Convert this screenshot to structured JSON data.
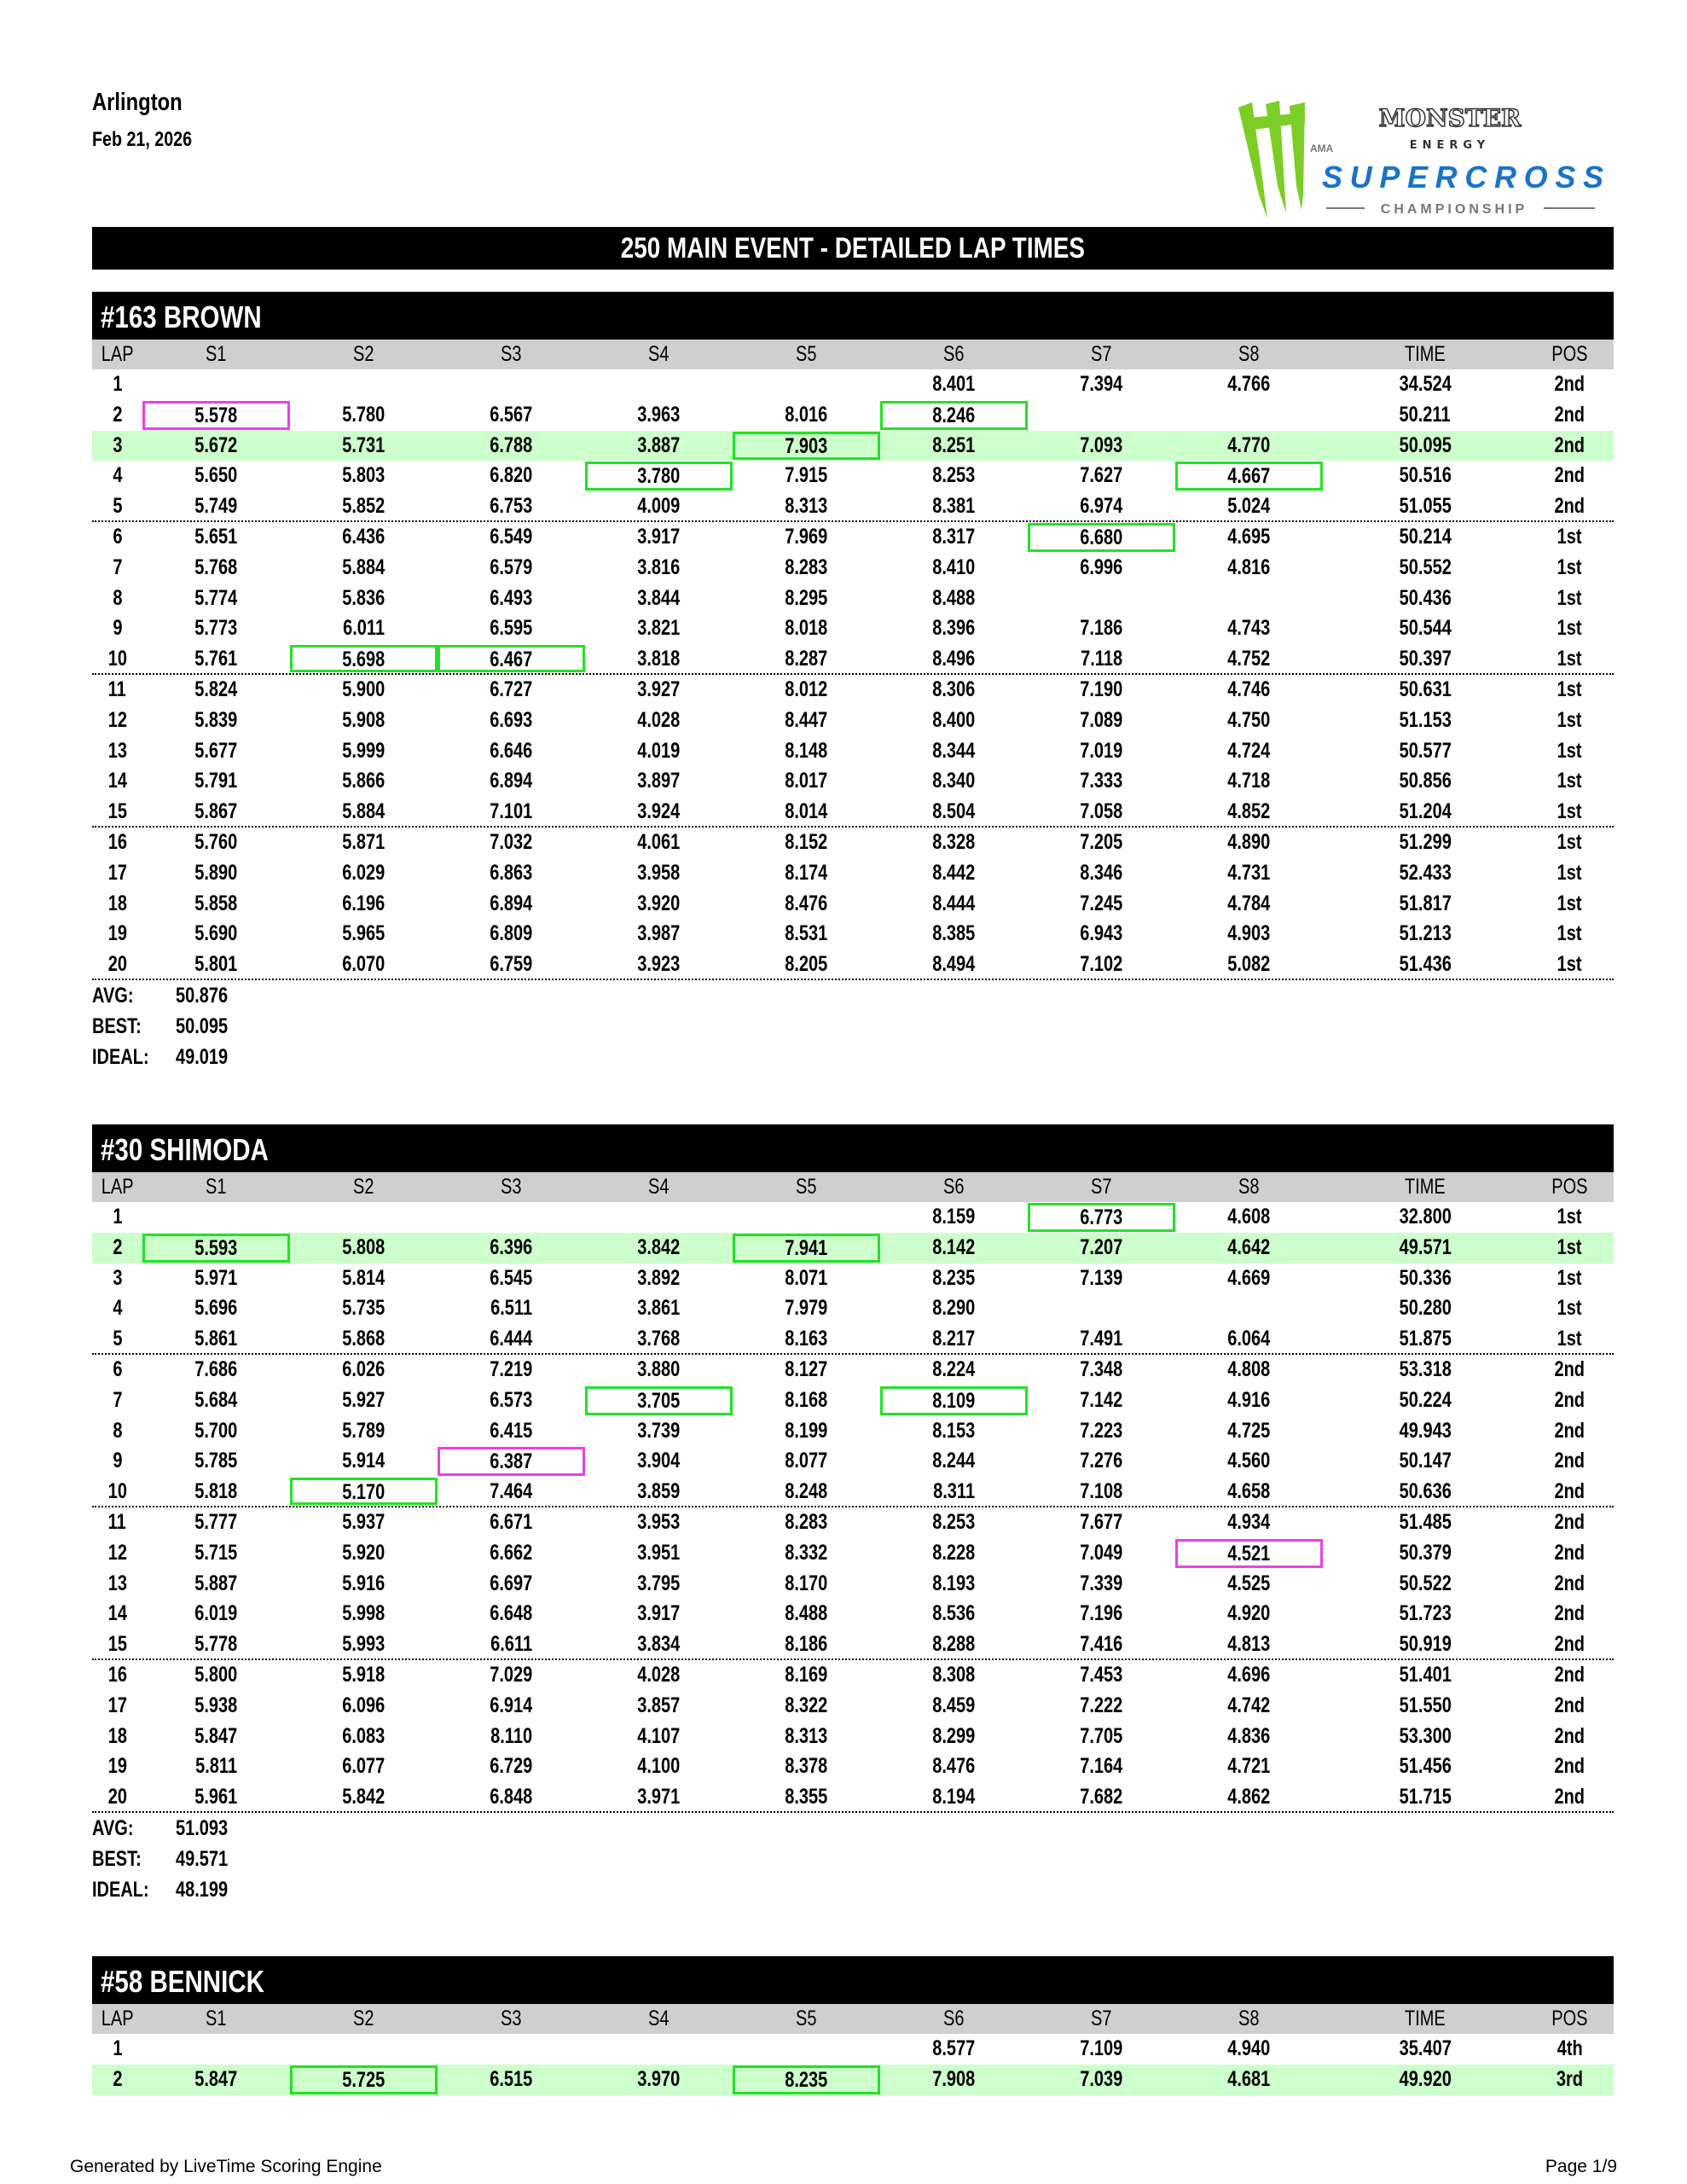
{
  "header": {
    "venue": "Arlington",
    "date": "Feb 21, 2026"
  },
  "logo": {
    "line1": "MONSTER",
    "line2": "ENERGY",
    "ama": "AMA",
    "brand": "SUPERCROSS",
    "sub": "CHAMPIONSHIP",
    "colors": {
      "claw": "#7ccd26",
      "blue": "#1a73c8",
      "grey": "#777777"
    }
  },
  "title": "250 MAIN EVENT - DETAILED LAP TIMES",
  "columns": [
    "LAP",
    "S1",
    "S2",
    "S3",
    "S4",
    "S5",
    "S6",
    "S7",
    "S8",
    "TIME",
    "POS"
  ],
  "colors": {
    "best_lap_row": "#ccffcc",
    "green_box": "#22e322",
    "magenta_box": "#ee3ee8",
    "header_gray": "#cfcfcf"
  },
  "stat_labels": {
    "avg": "AVG:",
    "best": "BEST:",
    "ideal": "IDEAL:"
  },
  "drivers": [
    {
      "name": "#163 BROWN",
      "rows": [
        {
          "c": [
            "1",
            "",
            "",
            "",
            "",
            "",
            "8.401",
            "7.394",
            "4.766",
            "34.524",
            "2nd"
          ]
        },
        {
          "c": [
            "2",
            "5.578",
            "5.780",
            "6.567",
            "3.963",
            "8.016",
            "8.246",
            "",
            "",
            "50.211",
            "2nd"
          ],
          "marks": {
            "1": "magenta",
            "6": "green"
          }
        },
        {
          "c": [
            "3",
            "5.672",
            "5.731",
            "6.788",
            "3.887",
            "7.903",
            "8.251",
            "7.093",
            "4.770",
            "50.095",
            "2nd"
          ],
          "best": true,
          "marks": {
            "5": "green"
          }
        },
        {
          "c": [
            "4",
            "5.650",
            "5.803",
            "6.820",
            "3.780",
            "7.915",
            "8.253",
            "7.627",
            "4.667",
            "50.516",
            "2nd"
          ],
          "marks": {
            "4": "green",
            "8": "green"
          }
        },
        {
          "c": [
            "5",
            "5.749",
            "5.852",
            "6.753",
            "4.009",
            "8.313",
            "8.381",
            "6.974",
            "5.024",
            "51.055",
            "2nd"
          ]
        },
        {
          "c": [
            "6",
            "5.651",
            "6.436",
            "6.549",
            "3.917",
            "7.969",
            "8.317",
            "6.680",
            "4.695",
            "50.214",
            "1st"
          ],
          "marks": {
            "7": "green"
          }
        },
        {
          "c": [
            "7",
            "5.768",
            "5.884",
            "6.579",
            "3.816",
            "8.283",
            "8.410",
            "6.996",
            "4.816",
            "50.552",
            "1st"
          ]
        },
        {
          "c": [
            "8",
            "5.774",
            "5.836",
            "6.493",
            "3.844",
            "8.295",
            "8.488",
            "",
            "",
            "50.436",
            "1st"
          ]
        },
        {
          "c": [
            "9",
            "5.773",
            "6.011",
            "6.595",
            "3.821",
            "8.018",
            "8.396",
            "7.186",
            "4.743",
            "50.544",
            "1st"
          ]
        },
        {
          "c": [
            "10",
            "5.761",
            "5.698",
            "6.467",
            "3.818",
            "8.287",
            "8.496",
            "7.118",
            "4.752",
            "50.397",
            "1st"
          ],
          "marks": {
            "2": "green",
            "3": "green"
          }
        },
        {
          "c": [
            "11",
            "5.824",
            "5.900",
            "6.727",
            "3.927",
            "8.012",
            "8.306",
            "7.190",
            "4.746",
            "50.631",
            "1st"
          ]
        },
        {
          "c": [
            "12",
            "5.839",
            "5.908",
            "6.693",
            "4.028",
            "8.447",
            "8.400",
            "7.089",
            "4.750",
            "51.153",
            "1st"
          ]
        },
        {
          "c": [
            "13",
            "5.677",
            "5.999",
            "6.646",
            "4.019",
            "8.148",
            "8.344",
            "7.019",
            "4.724",
            "50.577",
            "1st"
          ]
        },
        {
          "c": [
            "14",
            "5.791",
            "5.866",
            "6.894",
            "3.897",
            "8.017",
            "8.340",
            "7.333",
            "4.718",
            "50.856",
            "1st"
          ]
        },
        {
          "c": [
            "15",
            "5.867",
            "5.884",
            "7.101",
            "3.924",
            "8.014",
            "8.504",
            "7.058",
            "4.852",
            "51.204",
            "1st"
          ]
        },
        {
          "c": [
            "16",
            "5.760",
            "5.871",
            "7.032",
            "4.061",
            "8.152",
            "8.328",
            "7.205",
            "4.890",
            "51.299",
            "1st"
          ]
        },
        {
          "c": [
            "17",
            "5.890",
            "6.029",
            "6.863",
            "3.958",
            "8.174",
            "8.442",
            "8.346",
            "4.731",
            "52.433",
            "1st"
          ]
        },
        {
          "c": [
            "18",
            "5.858",
            "6.196",
            "6.894",
            "3.920",
            "8.476",
            "8.444",
            "7.245",
            "4.784",
            "51.817",
            "1st"
          ]
        },
        {
          "c": [
            "19",
            "5.690",
            "5.965",
            "6.809",
            "3.987",
            "8.531",
            "8.385",
            "6.943",
            "4.903",
            "51.213",
            "1st"
          ]
        },
        {
          "c": [
            "20",
            "5.801",
            "6.070",
            "6.759",
            "3.923",
            "8.205",
            "8.494",
            "7.102",
            "5.082",
            "51.436",
            "1st"
          ]
        }
      ],
      "avg": "50.876",
      "best": "50.095",
      "ideal": "49.019"
    },
    {
      "name": "#30 SHIMODA",
      "rows": [
        {
          "c": [
            "1",
            "",
            "",
            "",
            "",
            "",
            "8.159",
            "6.773",
            "4.608",
            "32.800",
            "1st"
          ],
          "marks": {
            "7": "green"
          }
        },
        {
          "c": [
            "2",
            "5.593",
            "5.808",
            "6.396",
            "3.842",
            "7.941",
            "8.142",
            "7.207",
            "4.642",
            "49.571",
            "1st"
          ],
          "best": true,
          "marks": {
            "1": "green",
            "5": "green"
          }
        },
        {
          "c": [
            "3",
            "5.971",
            "5.814",
            "6.545",
            "3.892",
            "8.071",
            "8.235",
            "7.139",
            "4.669",
            "50.336",
            "1st"
          ]
        },
        {
          "c": [
            "4",
            "5.696",
            "5.735",
            "6.511",
            "3.861",
            "7.979",
            "8.290",
            "",
            "",
            "50.280",
            "1st"
          ]
        },
        {
          "c": [
            "5",
            "5.861",
            "5.868",
            "6.444",
            "3.768",
            "8.163",
            "8.217",
            "7.491",
            "6.064",
            "51.875",
            "1st"
          ]
        },
        {
          "c": [
            "6",
            "7.686",
            "6.026",
            "7.219",
            "3.880",
            "8.127",
            "8.224",
            "7.348",
            "4.808",
            "53.318",
            "2nd"
          ]
        },
        {
          "c": [
            "7",
            "5.684",
            "5.927",
            "6.573",
            "3.705",
            "8.168",
            "8.109",
            "7.142",
            "4.916",
            "50.224",
            "2nd"
          ],
          "marks": {
            "4": "green",
            "6": "green"
          }
        },
        {
          "c": [
            "8",
            "5.700",
            "5.789",
            "6.415",
            "3.739",
            "8.199",
            "8.153",
            "7.223",
            "4.725",
            "49.943",
            "2nd"
          ]
        },
        {
          "c": [
            "9",
            "5.785",
            "5.914",
            "6.387",
            "3.904",
            "8.077",
            "8.244",
            "7.276",
            "4.560",
            "50.147",
            "2nd"
          ],
          "marks": {
            "3": "magenta"
          }
        },
        {
          "c": [
            "10",
            "5.818",
            "5.170",
            "7.464",
            "3.859",
            "8.248",
            "8.311",
            "7.108",
            "4.658",
            "50.636",
            "2nd"
          ],
          "marks": {
            "2": "green"
          }
        },
        {
          "c": [
            "11",
            "5.777",
            "5.937",
            "6.671",
            "3.953",
            "8.283",
            "8.253",
            "7.677",
            "4.934",
            "51.485",
            "2nd"
          ]
        },
        {
          "c": [
            "12",
            "5.715",
            "5.920",
            "6.662",
            "3.951",
            "8.332",
            "8.228",
            "7.049",
            "4.521",
            "50.379",
            "2nd"
          ],
          "marks": {
            "8": "magenta"
          }
        },
        {
          "c": [
            "13",
            "5.887",
            "5.916",
            "6.697",
            "3.795",
            "8.170",
            "8.193",
            "7.339",
            "4.525",
            "50.522",
            "2nd"
          ]
        },
        {
          "c": [
            "14",
            "6.019",
            "5.998",
            "6.648",
            "3.917",
            "8.488",
            "8.536",
            "7.196",
            "4.920",
            "51.723",
            "2nd"
          ]
        },
        {
          "c": [
            "15",
            "5.778",
            "5.993",
            "6.611",
            "3.834",
            "8.186",
            "8.288",
            "7.416",
            "4.813",
            "50.919",
            "2nd"
          ]
        },
        {
          "c": [
            "16",
            "5.800",
            "5.918",
            "7.029",
            "4.028",
            "8.169",
            "8.308",
            "7.453",
            "4.696",
            "51.401",
            "2nd"
          ]
        },
        {
          "c": [
            "17",
            "5.938",
            "6.096",
            "6.914",
            "3.857",
            "8.322",
            "8.459",
            "7.222",
            "4.742",
            "51.550",
            "2nd"
          ]
        },
        {
          "c": [
            "18",
            "5.847",
            "6.083",
            "8.110",
            "4.107",
            "8.313",
            "8.299",
            "7.705",
            "4.836",
            "53.300",
            "2nd"
          ]
        },
        {
          "c": [
            "19",
            "5.811",
            "6.077",
            "6.729",
            "4.100",
            "8.378",
            "8.476",
            "7.164",
            "4.721",
            "51.456",
            "2nd"
          ]
        },
        {
          "c": [
            "20",
            "5.961",
            "5.842",
            "6.848",
            "3.971",
            "8.355",
            "8.194",
            "7.682",
            "4.862",
            "51.715",
            "2nd"
          ]
        }
      ],
      "avg": "51.093",
      "best": "49.571",
      "ideal": "48.199"
    },
    {
      "name": "#58 BENNICK",
      "rows": [
        {
          "c": [
            "1",
            "",
            "",
            "",
            "",
            "",
            "8.577",
            "7.109",
            "4.940",
            "35.407",
            "4th"
          ]
        },
        {
          "c": [
            "2",
            "5.847",
            "5.725",
            "6.515",
            "3.970",
            "8.235",
            "7.908",
            "7.039",
            "4.681",
            "49.920",
            "3rd"
          ],
          "best": true,
          "marks": {
            "2": "green",
            "5": "green"
          }
        }
      ]
    }
  ],
  "footer": {
    "generator": "Generated by LiveTime Scoring Engine",
    "page": "Page 1/9"
  }
}
